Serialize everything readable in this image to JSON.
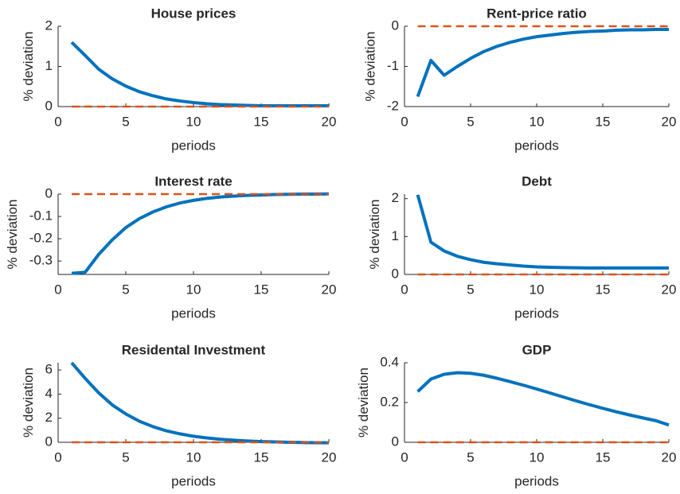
{
  "chart_data": [
    {
      "type": "line",
      "title": "House prices",
      "xlabel": "periods",
      "ylabel": "% deviation",
      "x": [
        1,
        2,
        3,
        4,
        5,
        6,
        7,
        8,
        9,
        10,
        11,
        12,
        13,
        14,
        15,
        16,
        17,
        18,
        19,
        20
      ],
      "xlim": [
        0,
        20
      ],
      "xticks": [
        0,
        5,
        10,
        15,
        20
      ],
      "ylim": [
        0,
        2
      ],
      "yticks": [
        0,
        1,
        2
      ],
      "series": [
        {
          "color": "#0072bd",
          "values": [
            1.6,
            1.27,
            0.93,
            0.69,
            0.51,
            0.37,
            0.27,
            0.19,
            0.14,
            0.1,
            0.07,
            0.05,
            0.04,
            0.03,
            0.02,
            0.02,
            0.02,
            0.02,
            0.02,
            0.02
          ]
        },
        {
          "color": "#d95319",
          "dashed": true,
          "values": [
            0,
            0,
            0,
            0,
            0,
            0,
            0,
            0,
            0,
            0,
            0,
            0,
            0,
            0,
            0,
            0,
            0,
            0,
            0,
            0
          ]
        }
      ]
    },
    {
      "type": "line",
      "title": "Rent-price ratio",
      "xlabel": "periods",
      "ylabel": "% deviation",
      "x": [
        1,
        2,
        3,
        4,
        5,
        6,
        7,
        8,
        9,
        10,
        11,
        12,
        13,
        14,
        15,
        16,
        17,
        18,
        19,
        20
      ],
      "xlim": [
        0,
        20
      ],
      "xticks": [
        0,
        5,
        10,
        15,
        20
      ],
      "ylim": [
        -2,
        0
      ],
      "yticks": [
        -2,
        -1,
        0
      ],
      "series": [
        {
          "color": "#0072bd",
          "values": [
            -1.75,
            -0.85,
            -1.22,
            -1.0,
            -0.8,
            -0.63,
            -0.5,
            -0.4,
            -0.32,
            -0.26,
            -0.22,
            -0.18,
            -0.15,
            -0.13,
            -0.12,
            -0.1,
            -0.09,
            -0.09,
            -0.08,
            -0.08
          ]
        },
        {
          "color": "#d95319",
          "dashed": true,
          "values": [
            0,
            0,
            0,
            0,
            0,
            0,
            0,
            0,
            0,
            0,
            0,
            0,
            0,
            0,
            0,
            0,
            0,
            0,
            0,
            0
          ]
        }
      ]
    },
    {
      "type": "line",
      "title": "Interest rate",
      "xlabel": "periods",
      "ylabel": "% deviation",
      "x": [
        1,
        2,
        3,
        4,
        5,
        6,
        7,
        8,
        9,
        10,
        11,
        12,
        13,
        14,
        15,
        16,
        17,
        18,
        19,
        20
      ],
      "xlim": [
        0,
        20
      ],
      "xticks": [
        0,
        5,
        10,
        15,
        20
      ],
      "ylim": [
        -0.36,
        0
      ],
      "yticks": [
        -0.3,
        -0.2,
        -0.1,
        0
      ],
      "series": [
        {
          "color": "#0072bd",
          "values": [
            -0.355,
            -0.35,
            -0.27,
            -0.205,
            -0.15,
            -0.11,
            -0.08,
            -0.057,
            -0.04,
            -0.028,
            -0.019,
            -0.013,
            -0.009,
            -0.006,
            -0.004,
            -0.002,
            -0.001,
            0,
            0,
            0.001
          ]
        },
        {
          "color": "#d95319",
          "dashed": true,
          "values": [
            0,
            0,
            0,
            0,
            0,
            0,
            0,
            0,
            0,
            0,
            0,
            0,
            0,
            0,
            0,
            0,
            0,
            0,
            0,
            0
          ]
        }
      ]
    },
    {
      "type": "line",
      "title": "Debt",
      "xlabel": "periods",
      "ylabel": "% deviation",
      "x": [
        1,
        2,
        3,
        4,
        5,
        6,
        7,
        8,
        9,
        10,
        11,
        12,
        13,
        14,
        15,
        16,
        17,
        18,
        19,
        20
      ],
      "xlim": [
        0,
        20
      ],
      "xticks": [
        0,
        5,
        10,
        15,
        20
      ],
      "ylim": [
        0,
        2.12
      ],
      "yticks": [
        0,
        1,
        2
      ],
      "series": [
        {
          "color": "#0072bd",
          "values": [
            2.1,
            0.85,
            0.62,
            0.48,
            0.39,
            0.32,
            0.28,
            0.25,
            0.22,
            0.2,
            0.19,
            0.18,
            0.175,
            0.17,
            0.17,
            0.17,
            0.17,
            0.17,
            0.17,
            0.17
          ]
        },
        {
          "color": "#d95319",
          "dashed": true,
          "values": [
            0,
            0,
            0,
            0,
            0,
            0,
            0,
            0,
            0,
            0,
            0,
            0,
            0,
            0,
            0,
            0,
            0,
            0,
            0,
            0
          ]
        }
      ]
    },
    {
      "type": "line",
      "title": "Residental Investment",
      "xlabel": "periods",
      "ylabel": "% deviation",
      "x": [
        1,
        2,
        3,
        4,
        5,
        6,
        7,
        8,
        9,
        10,
        11,
        12,
        13,
        14,
        15,
        16,
        17,
        18,
        19,
        20
      ],
      "xlim": [
        0,
        20
      ],
      "xticks": [
        0,
        5,
        10,
        15,
        20
      ],
      "ylim": [
        0,
        6.6
      ],
      "yticks": [
        0,
        2,
        4,
        6
      ],
      "series": [
        {
          "color": "#0072bd",
          "values": [
            6.6,
            5.3,
            4.1,
            3.1,
            2.35,
            1.75,
            1.3,
            0.95,
            0.7,
            0.5,
            0.36,
            0.25,
            0.17,
            0.11,
            0.06,
            0.03,
            0.0,
            -0.02,
            -0.03,
            -0.04
          ]
        },
        {
          "color": "#d95319",
          "dashed": true,
          "values": [
            0,
            0,
            0,
            0,
            0,
            0,
            0,
            0,
            0,
            0,
            0,
            0,
            0,
            0,
            0,
            0,
            0,
            0,
            0,
            0
          ]
        }
      ]
    },
    {
      "type": "line",
      "title": "GDP",
      "xlabel": "periods",
      "ylabel": "% deviation",
      "x": [
        1,
        2,
        3,
        4,
        5,
        6,
        7,
        8,
        9,
        10,
        11,
        12,
        13,
        14,
        15,
        16,
        17,
        18,
        19,
        20
      ],
      "xlim": [
        0,
        20
      ],
      "xticks": [
        0,
        5,
        10,
        15,
        20
      ],
      "ylim": [
        0,
        0.4
      ],
      "yticks": [
        0,
        0.2,
        0.4
      ],
      "series": [
        {
          "color": "#0072bd",
          "values": [
            0.255,
            0.318,
            0.342,
            0.35,
            0.347,
            0.337,
            0.322,
            0.305,
            0.287,
            0.268,
            0.248,
            0.228,
            0.208,
            0.189,
            0.171,
            0.154,
            0.138,
            0.123,
            0.109,
            0.087
          ]
        },
        {
          "color": "#d95319",
          "dashed": true,
          "values": [
            0,
            0,
            0,
            0,
            0,
            0,
            0,
            0,
            0,
            0,
            0,
            0,
            0,
            0,
            0,
            0,
            0,
            0,
            0,
            0
          ]
        }
      ]
    }
  ]
}
